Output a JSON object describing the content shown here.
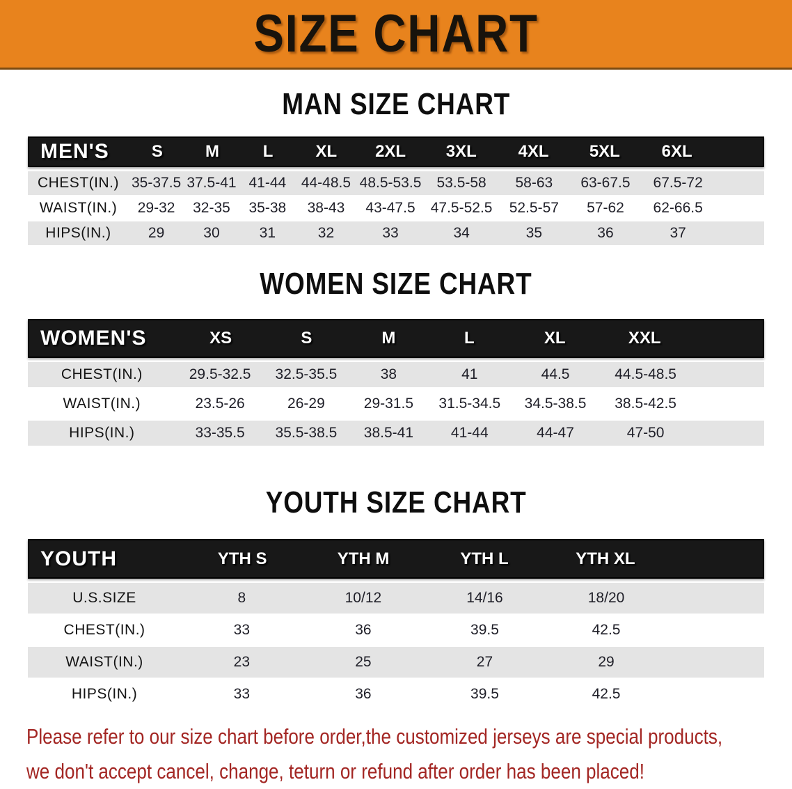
{
  "banner": {
    "title": "SIZE CHART",
    "background_color": "#E8831D",
    "text_color": "#18130c"
  },
  "accent_colors": {
    "table_header_bg": "#181818",
    "table_header_text": "#ffffff",
    "stripe_gray": "#e4e4e4",
    "footer_red": "#A32623"
  },
  "sections": [
    {
      "heading": "MAN SIZE CHART",
      "table": {
        "corner": "MEN'S",
        "columns": [
          "S",
          "M",
          "L",
          "XL",
          "2XL",
          "3XL",
          "4XL",
          "5XL",
          "6XL"
        ],
        "rows": [
          {
            "label": "CHEST(IN.)",
            "values": [
              "35-37.5",
              "37.5-41",
              "41-44",
              "44-48.5",
              "48.5-53.5",
              "53.5-58",
              "58-63",
              "63-67.5",
              "67.5-72"
            ]
          },
          {
            "label": "WAIST(IN.)",
            "values": [
              "29-32",
              "32-35",
              "35-38",
              "38-43",
              "43-47.5",
              "47.5-52.5",
              "52.5-57",
              "57-62",
              "62-66.5"
            ]
          },
          {
            "label": "HIPS(IN.)",
            "values": [
              "29",
              "30",
              "31",
              "32",
              "33",
              "34",
              "35",
              "36",
              "37"
            ]
          }
        ]
      }
    },
    {
      "heading": "WOMEN SIZE CHART",
      "table": {
        "corner": "WOMEN'S",
        "columns": [
          "XS",
          "S",
          "M",
          "L",
          "XL",
          "XXL"
        ],
        "rows": [
          {
            "label": "CHEST(IN.)",
            "values": [
              "29.5-32.5",
              "32.5-35.5",
              "38",
              "41",
              "44.5",
              "44.5-48.5"
            ]
          },
          {
            "label": "WAIST(IN.)",
            "values": [
              "23.5-26",
              "26-29",
              "29-31.5",
              "31.5-34.5",
              "34.5-38.5",
              "38.5-42.5"
            ]
          },
          {
            "label": "HIPS(IN.)",
            "values": [
              "33-35.5",
              "35.5-38.5",
              "38.5-41",
              "41-44",
              "44-47",
              "47-50"
            ]
          }
        ]
      }
    },
    {
      "heading": "YOUTH SIZE CHART",
      "table": {
        "corner": "YOUTH",
        "columns": [
          "YTH S",
          "YTH M",
          "YTH L",
          "YTH XL"
        ],
        "rows": [
          {
            "label": "U.S.SIZE",
            "values": [
              "8",
              "10/12",
              "14/16",
              "18/20"
            ]
          },
          {
            "label": "CHEST(IN.)",
            "values": [
              "33",
              "36",
              "39.5",
              "42.5"
            ]
          },
          {
            "label": "WAIST(IN.)",
            "values": [
              "23",
              "25",
              "27",
              "29"
            ]
          },
          {
            "label": "HIPS(IN.)",
            "values": [
              "33",
              "36",
              "39.5",
              "42.5"
            ]
          }
        ]
      }
    }
  ],
  "footer": {
    "line1": "Please refer to our size chart before order,the customized jerseys are special products,",
    "line2": "we don't accept cancel, change, teturn or refund after order has been placed!"
  }
}
